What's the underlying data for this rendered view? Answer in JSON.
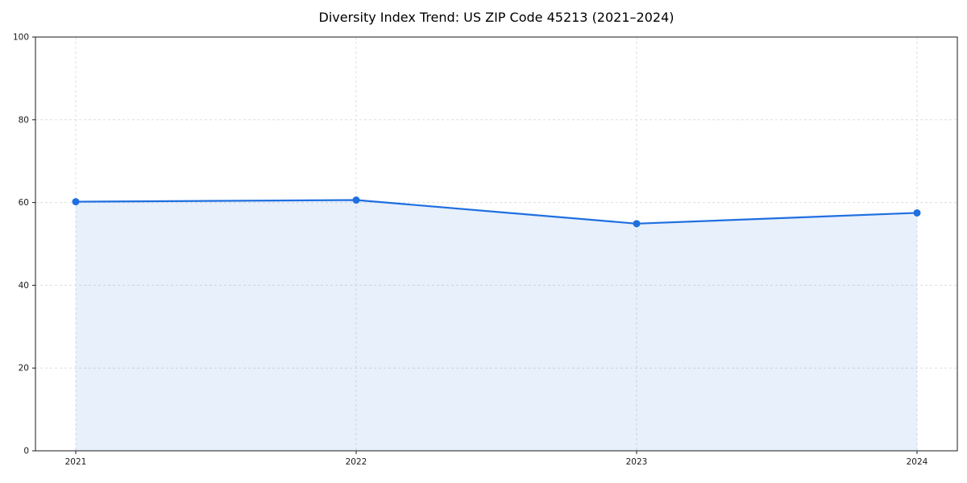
{
  "chart_data": {
    "type": "line",
    "title": "Diversity Index Trend: US ZIP Code 45213 (2021–2024)",
    "x": [
      "2021",
      "2022",
      "2023",
      "2024"
    ],
    "series": [
      {
        "name": "Diversity Index",
        "values": [
          60.2,
          60.6,
          54.9,
          57.5
        ]
      }
    ],
    "xlabel": "",
    "ylabel": "",
    "ylim": [
      0,
      100
    ],
    "yticks": [
      0,
      20,
      40,
      60,
      80,
      100
    ],
    "grid": "dashed",
    "legend": "none",
    "colors": {
      "line": "#1f6fe0",
      "marker": "#1f6fe0",
      "area_fill": "rgba(31,111,224,0.10)",
      "grid": "#dedede",
      "axis": "#1a1a1a",
      "background": "#ffffff"
    },
    "area_fill": true,
    "marker": "circle"
  }
}
